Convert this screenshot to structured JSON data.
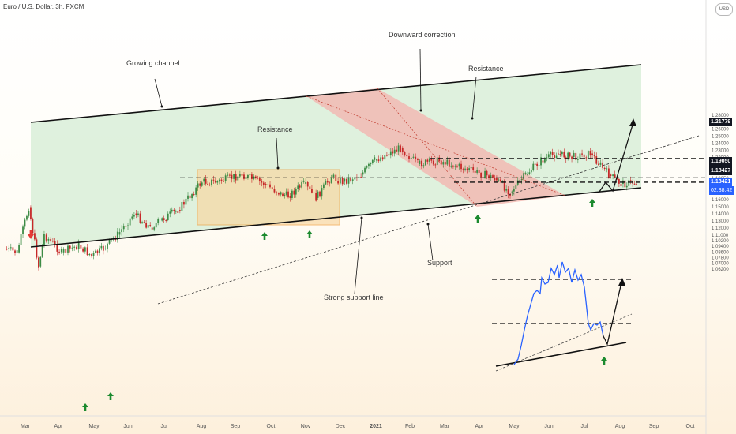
{
  "header": {
    "symbol_title": "Euro / U.S. Dollar, 3h, FXCM",
    "currency_button": "USD"
  },
  "price_tags": {
    "target": "1.21779",
    "level_upper": "1.19050",
    "level_lower": "1.18427",
    "current": "1.18421",
    "countdown": "02:38:42"
  },
  "annotations": {
    "growing_channel": "Growing channel",
    "downward_correction": "Downward correction",
    "resistance_top": "Resistance",
    "resistance_box": "Resistance",
    "support": "Support",
    "strong_support": "Strong support line"
  },
  "colors": {
    "channel_fill": "#d9eed8",
    "correction_fill": "#f2b7b0",
    "resistance_box_fill": "#f8d8a4",
    "resistance_box_stroke": "#f0a040",
    "candle_up": "#3d8b45",
    "candle_down": "#c62828",
    "inset_line": "#2962ff",
    "arrow_up": "#1b8a2e",
    "arrow_down": "#e53935"
  },
  "chart_data": {
    "type": "line",
    "title": "Euro / U.S. Dollar, 3h, FXCM",
    "xlabel": "",
    "ylabel": "",
    "x_ticks": [
      "Mar",
      "Apr",
      "May",
      "Jun",
      "Jul",
      "Aug",
      "Sep",
      "Oct",
      "Nov",
      "Dec",
      "2021",
      "Feb",
      "Mar",
      "Apr",
      "May",
      "Jun",
      "Jul",
      "Aug",
      "Sep",
      "Oct"
    ],
    "y_ticks": [
      "1.28000",
      "1.27000",
      "1.26000",
      "1.25000",
      "1.24000",
      "1.23000",
      "1.22000",
      "1.21000",
      "1.20000",
      "1.19050",
      "1.18427",
      "1.17000",
      "1.16000",
      "1.15000",
      "1.14000",
      "1.13000",
      "1.12000",
      "1.11000",
      "1.10200",
      "1.09400",
      "1.08600",
      "1.07800",
      "1.07000",
      "1.06200"
    ],
    "ylim": [
      1.062,
      1.284
    ],
    "grid": false,
    "series": [
      {
        "x": [
          "Feb 20",
          "Mar 1",
          "Mar 9",
          "Mar 20",
          "Mar 27",
          "Apr 10",
          "Apr 24",
          "May 5",
          "May 15",
          "May 27",
          "Jun 10",
          "Jun 22",
          "Jul 1",
          "Jul 15",
          "Jul 28",
          "Aug 6",
          "Aug 20",
          "Sep 1",
          "Sep 15",
          "Sep 25",
          "Oct 10",
          "Oct 20",
          "Nov 4",
          "Nov 15",
          "Dec 1",
          "Dec 10",
          "Dec 20",
          "Jan 6",
          "Jan 20",
          "Feb 5",
          "Feb 25",
          "Mar 10",
          "Mar 31",
          "Apr 15",
          "Apr 29",
          "May 10",
          "May 25",
          "Jun 10",
          "Jun 25",
          "Jul 7",
          "Jul 20"
        ],
        "values": [
          1.09,
          1.085,
          1.149,
          1.065,
          1.11,
          1.085,
          1.095,
          1.08,
          1.09,
          1.11,
          1.14,
          1.12,
          1.13,
          1.145,
          1.185,
          1.185,
          1.195,
          1.182,
          1.168,
          1.165,
          1.182,
          1.162,
          1.192,
          1.185,
          1.195,
          1.215,
          1.224,
          1.233,
          1.21,
          1.215,
          1.2,
          1.19,
          1.17,
          1.195,
          1.215,
          1.225,
          1.22,
          1.225,
          1.195,
          1.182,
          1.1842
        ]
      }
    ],
    "levels": [
      {
        "value": 1.21779,
        "style": "dashed"
      },
      {
        "value": 1.1905,
        "style": "dashed"
      },
      {
        "value": 1.18427,
        "style": "dashed"
      }
    ]
  }
}
